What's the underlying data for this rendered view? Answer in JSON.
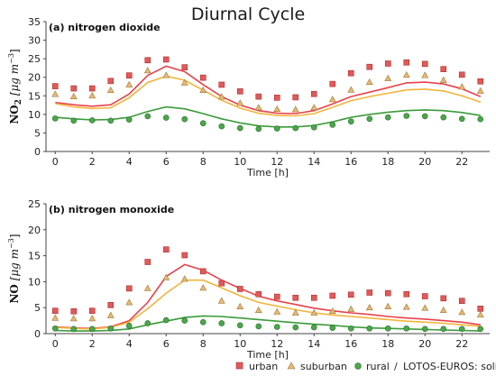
{
  "figure": {
    "title": "Diurnal Cycle"
  },
  "legend": {
    "items": [
      {
        "label": "urban",
        "marker": "square",
        "color": "#d83b3b"
      },
      {
        "label": "suburban",
        "marker": "triangle",
        "color": "#e6a53a"
      },
      {
        "label": "rural",
        "marker": "circle",
        "color": "#3f9f3f"
      }
    ],
    "separator": "/",
    "model_label": "LOTOS-EUROS: solid"
  },
  "colors": {
    "urban": "#e8424a",
    "suburban": "#f3b43a",
    "rural": "#3a9b3a"
  },
  "chart_data": [
    {
      "type": "line",
      "title": "(a) nitrogen dioxide",
      "xlabel": "Time [h]",
      "ylabel": {
        "main": "NO",
        "sub": "2",
        "rest": " [μg m",
        "sup": "−3",
        "end": "]"
      },
      "x": [
        0,
        1,
        2,
        3,
        4,
        5,
        6,
        7,
        8,
        9,
        10,
        11,
        12,
        13,
        14,
        15,
        16,
        17,
        18,
        19,
        20,
        21,
        22,
        23
      ],
      "xticks": [
        0,
        2,
        4,
        6,
        8,
        10,
        12,
        14,
        16,
        18,
        20,
        22
      ],
      "yticks": [
        0,
        5,
        10,
        15,
        20,
        25,
        30,
        35
      ],
      "xlim": [
        -0.5,
        23.5
      ],
      "ylim": [
        0,
        35
      ],
      "series": [
        {
          "name": "urban",
          "kind": "observed",
          "marker": "square",
          "values": [
            17.6,
            17.0,
            17.0,
            19.0,
            20.5,
            24.6,
            24.8,
            22.7,
            19.9,
            18.0,
            16.2,
            14.8,
            14.5,
            14.6,
            15.5,
            18.2,
            21.1,
            22.8,
            23.7,
            24.0,
            23.6,
            22.2,
            20.7,
            18.9
          ]
        },
        {
          "name": "suburban",
          "kind": "observed",
          "marker": "triangle",
          "values": [
            15.4,
            14.8,
            15.0,
            16.5,
            18.0,
            21.8,
            20.5,
            18.5,
            16.5,
            14.7,
            13.0,
            11.8,
            11.4,
            11.3,
            11.8,
            14.0,
            16.6,
            18.7,
            19.7,
            20.6,
            20.5,
            19.2,
            17.4,
            16.3
          ]
        },
        {
          "name": "rural",
          "kind": "observed",
          "marker": "circle",
          "values": [
            8.9,
            8.3,
            8.4,
            8.3,
            8.6,
            9.5,
            9.1,
            8.7,
            7.6,
            6.8,
            6.3,
            6.1,
            6.2,
            6.3,
            6.5,
            7.2,
            8.1,
            8.8,
            9.2,
            9.6,
            9.5,
            9.2,
            8.8,
            8.7
          ]
        },
        {
          "name": "urban",
          "kind": "model",
          "values": [
            13.2,
            12.6,
            12.2,
            12.6,
            15.5,
            20.5,
            23.0,
            21.5,
            18.0,
            14.8,
            12.5,
            11.0,
            10.3,
            10.2,
            11.0,
            12.8,
            14.8,
            16.0,
            17.2,
            18.5,
            18.7,
            18.2,
            16.9,
            14.8
          ]
        },
        {
          "name": "suburban",
          "kind": "model",
          "values": [
            12.9,
            12.0,
            11.6,
            11.8,
            14.5,
            18.6,
            20.3,
            19.2,
            16.5,
            13.8,
            11.7,
            10.3,
            9.7,
            9.6,
            10.2,
            11.9,
            13.7,
            14.8,
            15.7,
            16.6,
            16.8,
            16.3,
            15.0,
            13.3
          ]
        },
        {
          "name": "rural",
          "kind": "model",
          "values": [
            9.2,
            8.8,
            8.5,
            8.6,
            9.2,
            10.8,
            12.0,
            11.5,
            10.2,
            8.8,
            7.7,
            6.9,
            6.6,
            6.6,
            7.0,
            8.0,
            9.2,
            10.0,
            10.6,
            11.0,
            11.2,
            11.0,
            10.5,
            9.7
          ]
        }
      ]
    },
    {
      "type": "line",
      "title": "(b) nitrogen monoxide",
      "xlabel": "Time [h]",
      "ylabel": {
        "main": "NO",
        "sub": "",
        "rest": " [μg m",
        "sup": "−3",
        "end": "]"
      },
      "x": [
        0,
        1,
        2,
        3,
        4,
        5,
        6,
        7,
        8,
        9,
        10,
        11,
        12,
        13,
        14,
        15,
        16,
        17,
        18,
        19,
        20,
        21,
        22,
        23
      ],
      "xticks": [
        0,
        2,
        4,
        6,
        8,
        10,
        12,
        14,
        16,
        18,
        20,
        22
      ],
      "yticks": [
        0,
        5,
        10,
        15,
        20,
        25
      ],
      "xlim": [
        -0.5,
        23.5
      ],
      "ylim": [
        0,
        25
      ],
      "series": [
        {
          "name": "urban",
          "kind": "observed",
          "marker": "square",
          "values": [
            4.4,
            4.3,
            4.4,
            5.5,
            8.7,
            13.8,
            16.2,
            15.1,
            12.0,
            9.7,
            8.6,
            7.6,
            7.1,
            6.9,
            6.9,
            7.3,
            7.5,
            7.9,
            7.8,
            7.6,
            7.2,
            6.8,
            6.3,
            4.8
          ]
        },
        {
          "name": "suburban",
          "kind": "observed",
          "marker": "triangle",
          "values": [
            3.0,
            2.9,
            2.9,
            3.5,
            6.0,
            8.7,
            10.8,
            10.5,
            8.8,
            6.3,
            5.2,
            4.5,
            4.2,
            4.0,
            4.0,
            4.3,
            4.7,
            5.0,
            5.2,
            5.1,
            4.9,
            4.5,
            4.1,
            3.6
          ]
        },
        {
          "name": "rural",
          "kind": "observed",
          "marker": "circle",
          "values": [
            1.0,
            0.9,
            0.9,
            1.0,
            1.5,
            2.0,
            2.6,
            2.5,
            2.2,
            2.0,
            1.6,
            1.4,
            1.3,
            1.2,
            1.2,
            1.1,
            1.0,
            1.0,
            1.0,
            1.0,
            0.9,
            0.9,
            0.9,
            0.9
          ]
        },
        {
          "name": "urban",
          "kind": "model",
          "values": [
            1.3,
            1.1,
            1.0,
            1.3,
            2.5,
            6.0,
            11.0,
            13.3,
            12.2,
            10.3,
            8.7,
            7.2,
            6.3,
            5.6,
            4.9,
            4.4,
            4.0,
            3.7,
            3.3,
            3.0,
            2.8,
            2.5,
            2.2,
            1.7
          ]
        },
        {
          "name": "suburban",
          "kind": "model",
          "values": [
            1.2,
            1.0,
            0.9,
            1.2,
            2.2,
            4.8,
            7.8,
            10.3,
            10.3,
            8.8,
            7.3,
            6.0,
            5.3,
            4.6,
            4.0,
            3.6,
            3.3,
            3.0,
            2.7,
            2.4,
            2.2,
            2.0,
            1.7,
            1.4
          ]
        },
        {
          "name": "rural",
          "kind": "model",
          "values": [
            0.6,
            0.5,
            0.5,
            0.6,
            0.9,
            1.7,
            2.4,
            3.1,
            3.4,
            3.3,
            3.0,
            2.7,
            2.4,
            2.1,
            1.8,
            1.6,
            1.3,
            1.1,
            1.0,
            0.9,
            0.8,
            0.7,
            0.6,
            0.5
          ]
        }
      ]
    }
  ]
}
